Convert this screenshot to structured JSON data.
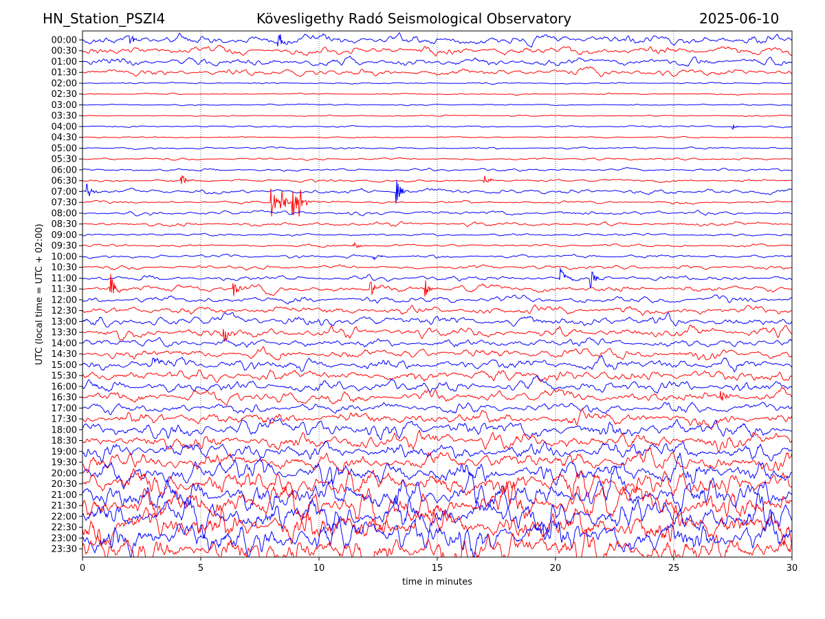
{
  "header": {
    "station": "HN_Station_PSZI4",
    "observatory": "Kövesligethy Radó Seismological Observatory",
    "date": "2025-06-10"
  },
  "chart_data": {
    "type": "line",
    "title": "Kövesligethy Radó Seismological Observatory",
    "xlabel": "time in minutes",
    "ylabel": "UTC (local time = UTC + 02:00)",
    "xlim": [
      0,
      30
    ],
    "xticks": [
      "0",
      "5",
      "10",
      "15",
      "20",
      "25",
      "30"
    ],
    "grid": "vertical dotted at 5-minute intervals",
    "colors": [
      "#0000ff",
      "#ff0000"
    ],
    "rows": [
      "00:00",
      "00:30",
      "01:00",
      "01:30",
      "02:00",
      "02:30",
      "03:00",
      "03:30",
      "04:00",
      "04:30",
      "05:00",
      "05:30",
      "06:00",
      "06:30",
      "07:00",
      "07:30",
      "08:00",
      "08:30",
      "09:00",
      "09:30",
      "10:00",
      "10:30",
      "11:00",
      "11:30",
      "12:00",
      "12:30",
      "13:00",
      "13:30",
      "14:00",
      "14:30",
      "15:00",
      "15:30",
      "16:00",
      "16:30",
      "17:00",
      "17:30",
      "18:00",
      "18:30",
      "19:00",
      "19:30",
      "20:00",
      "20:30",
      "21:00",
      "21:30",
      "22:00",
      "22:30",
      "23:00",
      "23:30"
    ],
    "noise_level": [
      3,
      2.5,
      2.5,
      2,
      0.5,
      0.4,
      0.4,
      0.4,
      0.5,
      0.4,
      0.6,
      0.7,
      0.8,
      0.8,
      1.5,
      0.8,
      1.2,
      1.2,
      0.8,
      0.8,
      1,
      1.2,
      1.5,
      2,
      2,
      2.5,
      3,
      3,
      2.5,
      3,
      3.5,
      3.5,
      3.5,
      3.5,
      3,
      4,
      5,
      5,
      5,
      5.5,
      7,
      8,
      9,
      10,
      10,
      10,
      10,
      10
    ],
    "events": [
      {
        "row": "00:00",
        "minute": 2.0,
        "amplitude": 6
      },
      {
        "row": "00:00",
        "minute": 8.3,
        "amplitude": 6
      },
      {
        "row": "04:00",
        "minute": 27.5,
        "amplitude": 2
      },
      {
        "row": "06:30",
        "minute": 4.2,
        "amplitude": 4
      },
      {
        "row": "06:30",
        "minute": 17.0,
        "amplitude": 4
      },
      {
        "row": "07:00",
        "minute": 0.2,
        "amplitude": 6
      },
      {
        "row": "07:00",
        "minute": 13.3,
        "amplitude": 8
      },
      {
        "row": "07:30",
        "minute": 8.0,
        "amplitude": 10
      },
      {
        "row": "07:30",
        "minute": 8.4,
        "amplitude": 10
      },
      {
        "row": "07:30",
        "minute": 8.9,
        "amplitude": 10
      },
      {
        "row": "07:30",
        "minute": 9.2,
        "amplitude": 10
      },
      {
        "row": "09:30",
        "minute": 11.5,
        "amplitude": 3
      },
      {
        "row": "10:00",
        "minute": 12.3,
        "amplitude": 3
      },
      {
        "row": "11:00",
        "minute": 20.2,
        "amplitude": 7
      },
      {
        "row": "11:00",
        "minute": 21.5,
        "amplitude": 7
      },
      {
        "row": "11:30",
        "minute": 1.2,
        "amplitude": 9
      },
      {
        "row": "11:30",
        "minute": 6.4,
        "amplitude": 6
      },
      {
        "row": "11:30",
        "minute": 12.2,
        "amplitude": 6
      },
      {
        "row": "11:30",
        "minute": 14.5,
        "amplitude": 6
      },
      {
        "row": "13:30",
        "minute": 6.0,
        "amplitude": 7
      },
      {
        "row": "15:00",
        "minute": 3.0,
        "amplitude": 4
      },
      {
        "row": "16:30",
        "minute": 27.0,
        "amplitude": 6
      }
    ]
  }
}
